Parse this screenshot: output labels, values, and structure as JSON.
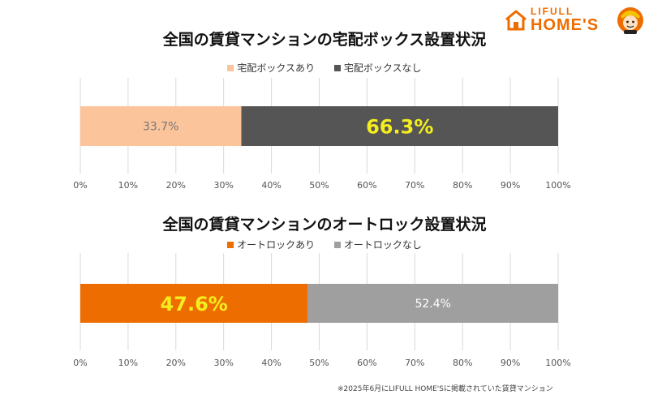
{
  "logo": {
    "line1": "LIFULL",
    "line2": "HOME'S"
  },
  "chart_data": [
    {
      "type": "bar",
      "orientation": "horizontal-stacked-100",
      "title": "全国の賃貸マンションの宅配ボックス設置状況",
      "series": [
        {
          "name": "宅配ボックスあり",
          "value": 33.7,
          "label": "33.7%",
          "color": "#fbc49b",
          "label_color": "#777777",
          "label_emphasis": false
        },
        {
          "name": "宅配ボックスなし",
          "value": 66.3,
          "label": "66.3%",
          "color": "#555555",
          "label_color": "#f5ee1e",
          "label_emphasis": true
        }
      ],
      "xlim": [
        0,
        100
      ],
      "ticks": [
        "0%",
        "10%",
        "20%",
        "30%",
        "40%",
        "50%",
        "60%",
        "70%",
        "80%",
        "90%",
        "100%"
      ],
      "grid": true,
      "legend": "top-center"
    },
    {
      "type": "bar",
      "orientation": "horizontal-stacked-100",
      "title": "全国の賃貸マンションのオートロック設置状況",
      "series": [
        {
          "name": "オートロックあり",
          "value": 47.6,
          "label": "47.6%",
          "color": "#ed6d00",
          "label_color": "#f5ee1e",
          "label_emphasis": true
        },
        {
          "name": "オートロックなし",
          "value": 52.4,
          "label": "52.4%",
          "color": "#9f9f9f",
          "label_color": "#ffffff",
          "label_emphasis": false
        }
      ],
      "xlim": [
        0,
        100
      ],
      "ticks": [
        "0%",
        "10%",
        "20%",
        "30%",
        "40%",
        "50%",
        "60%",
        "70%",
        "80%",
        "90%",
        "100%"
      ],
      "grid": true,
      "legend": "top-center"
    }
  ],
  "footnote": "※2025年6月にLIFULL HOME'Sに掲載されていた賃貸マンション"
}
